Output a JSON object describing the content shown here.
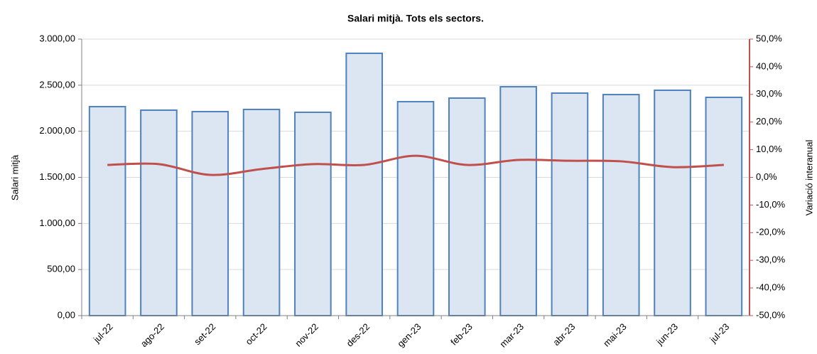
{
  "chart_data": {
    "type": "bar_line",
    "title": "Salari mitjà. Tots els sectors.",
    "y_label": "Salari mitjà",
    "y2_label": "Variació interanual",
    "categories": [
      "jul-22",
      "ago-22",
      "set-22",
      "oct-22",
      "nov-22",
      "des-22",
      "gen-23",
      "feb-23",
      "mar-23",
      "abr-23",
      "mai-23",
      "jun-23",
      "jul-23"
    ],
    "series": [
      {
        "type": "bar",
        "color": "#dce6f2",
        "edge_color": "#4f81bd",
        "values": [
          2267,
          2229,
          2213,
          2237,
          2206,
          2846,
          2321,
          2360,
          2483,
          2414,
          2398,
          2445,
          2368
        ]
      },
      {
        "type": "line",
        "axis": "y2",
        "color": "#c0504d",
        "values": [
          4.5,
          4.8,
          0.9,
          3.0,
          4.8,
          4.5,
          7.8,
          4.5,
          6.3,
          6.0,
          5.8,
          3.7,
          4.5
        ]
      }
    ],
    "ylim": [
      0,
      3000
    ],
    "yticks": [
      {
        "value": 0,
        "label": "0,00"
      },
      {
        "value": 500,
        "label": "500,00"
      },
      {
        "value": 1000,
        "label": "1.000,00"
      },
      {
        "value": 1500,
        "label": "1.500,00"
      },
      {
        "value": 2000,
        "label": "2.000,00"
      },
      {
        "value": 2500,
        "label": "2.500,00"
      },
      {
        "value": 3000,
        "label": "3.000,00"
      }
    ],
    "y2lim": [
      -50,
      50
    ],
    "y2ticks": [
      {
        "value": -50,
        "label": "-50,0%"
      },
      {
        "value": -40,
        "label": "-40,0%"
      },
      {
        "value": -30,
        "label": "-30,0%"
      },
      {
        "value": -20,
        "label": "-20,0%"
      },
      {
        "value": -10,
        "label": "-10,0%"
      },
      {
        "value": 0,
        "label": "0,0%"
      },
      {
        "value": 10,
        "label": "10,0%"
      },
      {
        "value": 20,
        "label": "20,0%"
      },
      {
        "value": 30,
        "label": "30,0%"
      },
      {
        "value": 40,
        "label": "40,0%"
      },
      {
        "value": 50,
        "label": "50,0%"
      }
    ],
    "grid": true
  }
}
